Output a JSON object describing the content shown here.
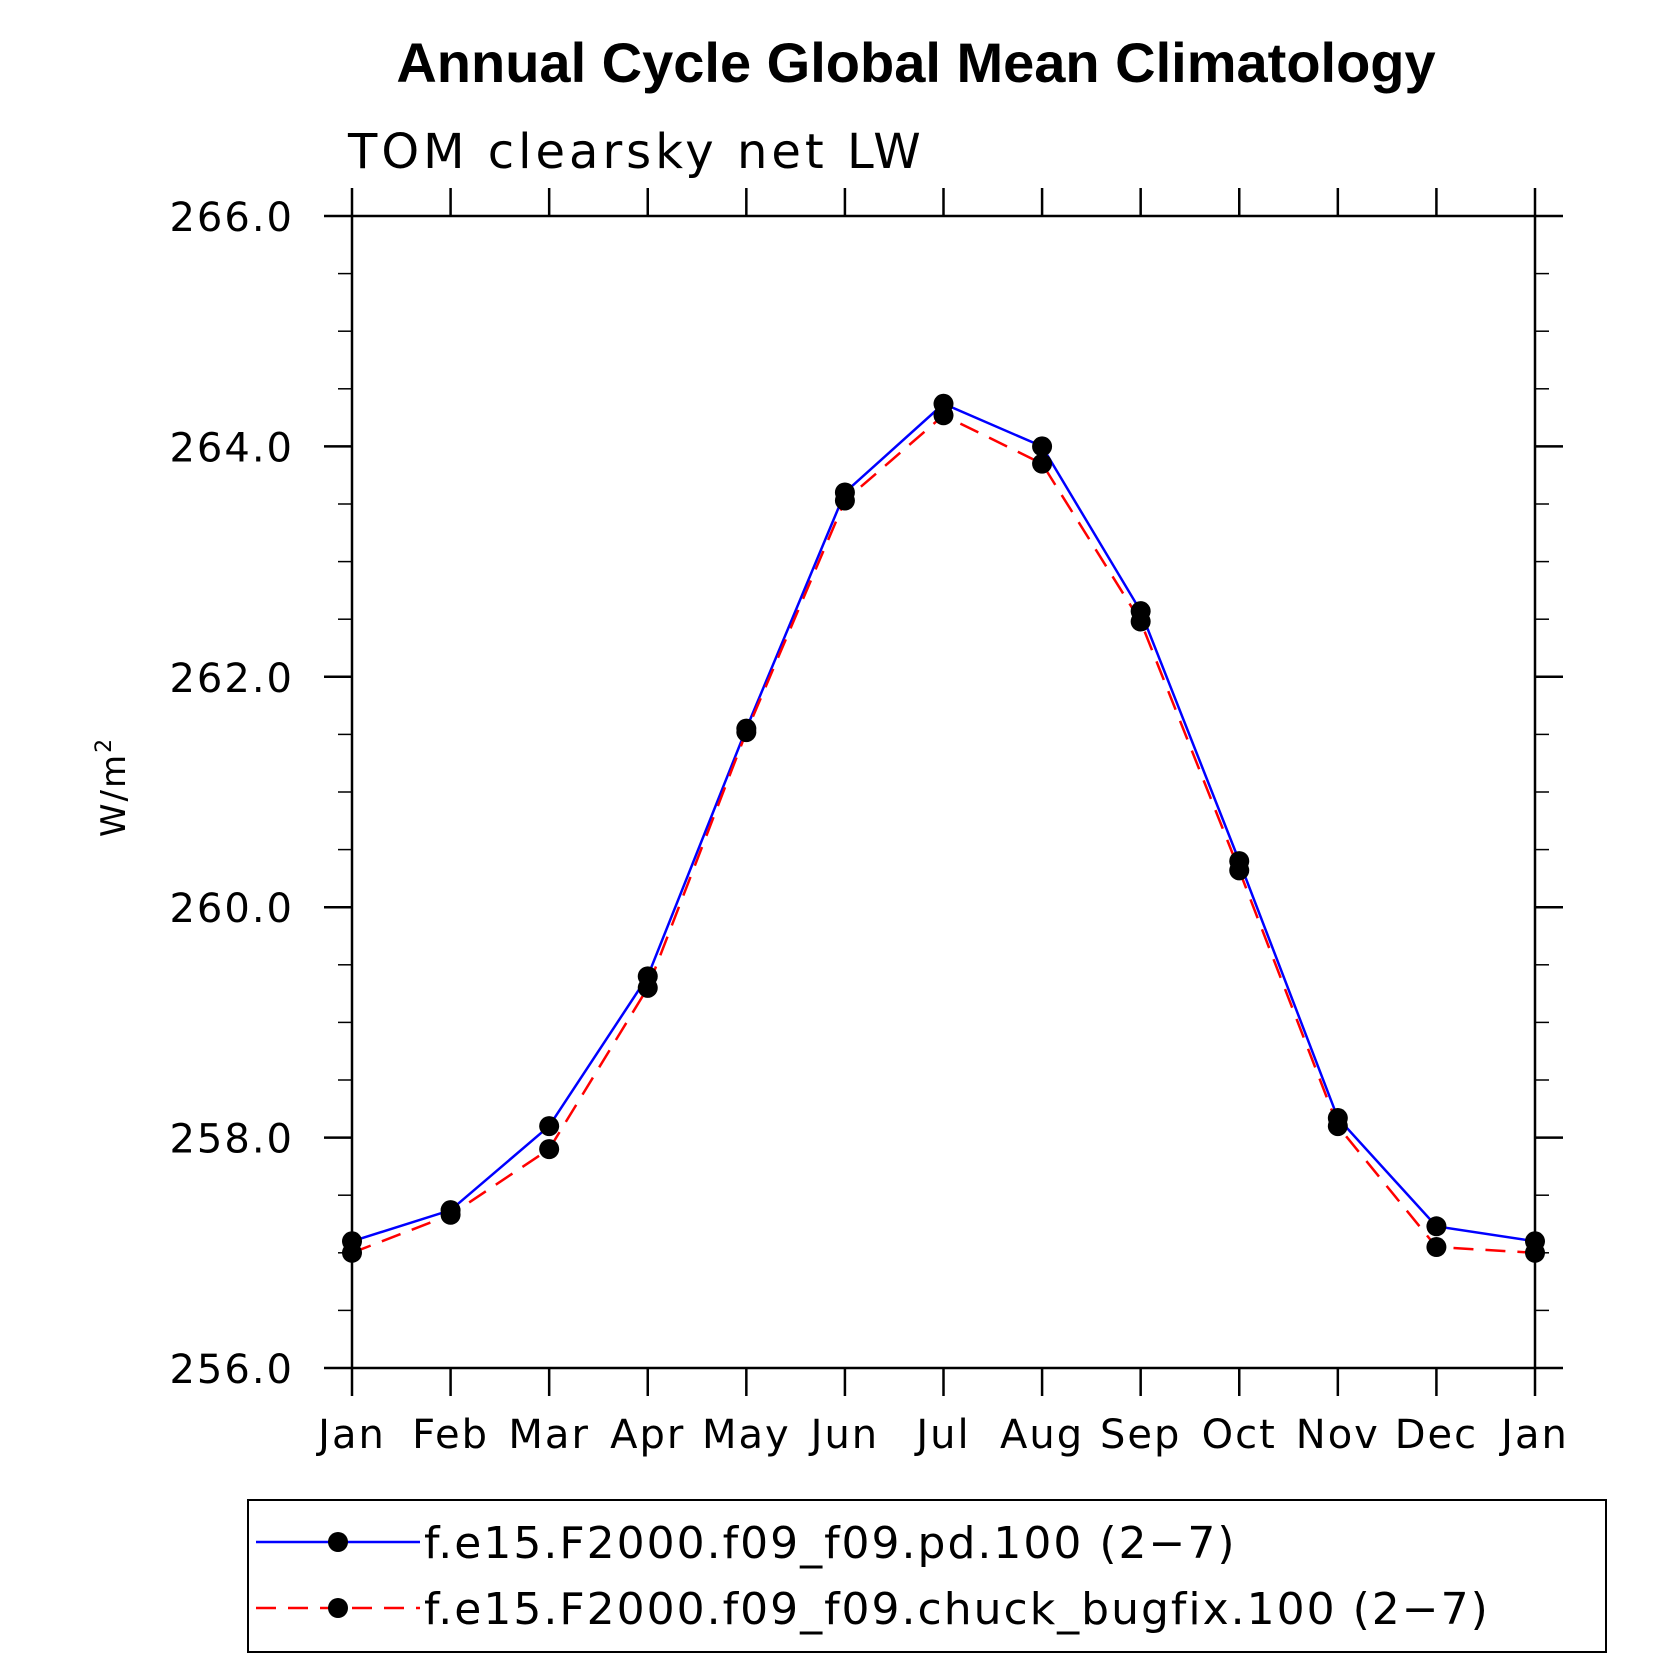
{
  "chart_data": {
    "type": "line",
    "title": "Annual Cycle Global Mean Climatology",
    "subtitle": "TOM clearsky net LW",
    "ylabel": "W/m",
    "ylabel_superscript": "2",
    "xlabel": "",
    "categories": [
      "Jan",
      "Feb",
      "Mar",
      "Apr",
      "May",
      "Jun",
      "Jul",
      "Aug",
      "Sep",
      "Oct",
      "Nov",
      "Dec",
      "Jan"
    ],
    "ylim": [
      256.0,
      266.0
    ],
    "yticks": [
      256.0,
      258.0,
      260.0,
      262.0,
      264.0,
      266.0
    ],
    "ytick_labels": [
      "256.0",
      "258.0",
      "260.0",
      "262.0",
      "264.0",
      "266.0"
    ],
    "y_minor_step": 0.5,
    "grid": false,
    "legend_position": "bottom",
    "series": [
      {
        "name": "f.e15.F2000.f09_f09.pd.100 (2−7)",
        "color": "#0000ff",
        "line_style": "solid",
        "marker": "filled-circle",
        "values": [
          257.1,
          257.37,
          258.1,
          259.4,
          261.55,
          263.6,
          264.37,
          264.0,
          262.57,
          260.4,
          258.17,
          257.23,
          257.1
        ]
      },
      {
        "name": "f.e15.F2000.f09_f09.chuck_bugfix.100 (2−7)",
        "color": "#ff0000",
        "line_style": "dashed",
        "marker": "filled-circle",
        "values": [
          257.0,
          257.33,
          257.9,
          259.3,
          261.52,
          263.53,
          264.27,
          263.85,
          262.48,
          260.32,
          258.1,
          257.05,
          257.0
        ]
      }
    ]
  }
}
